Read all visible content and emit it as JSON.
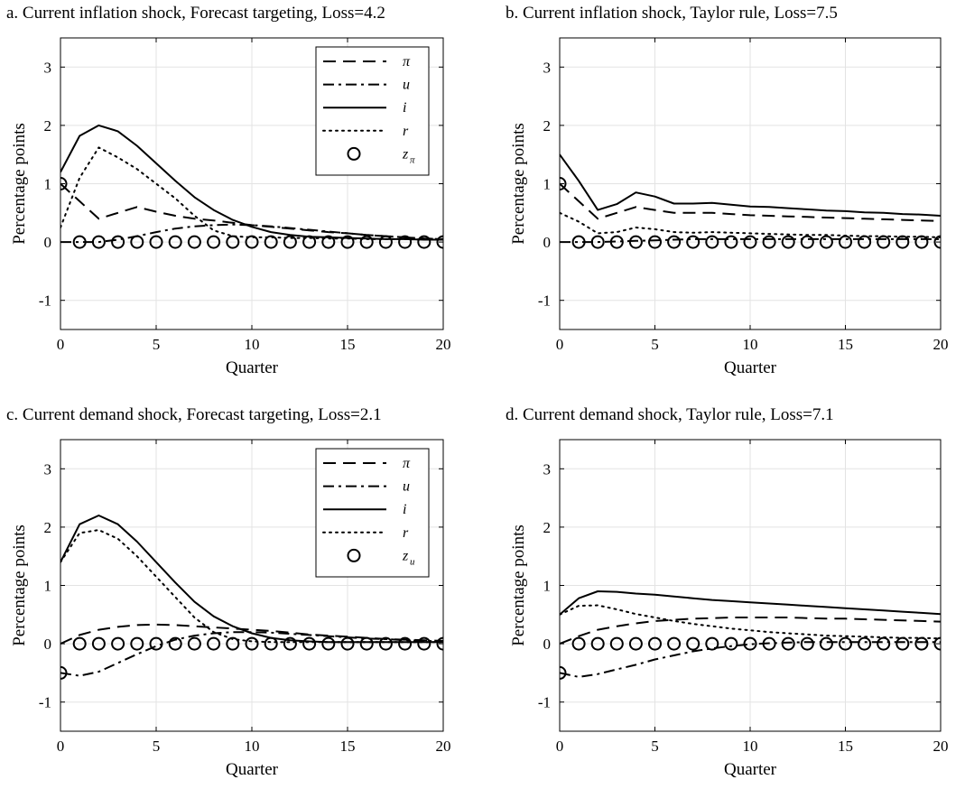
{
  "chart_data": [
    {
      "panel": "a",
      "type": "line",
      "title": "a. Current inflation shock, Forecast targeting, Loss=4.2",
      "xlabel": "Quarter",
      "ylabel": "Percentage points",
      "xlim": [
        0,
        20
      ],
      "ylim": [
        -1.5,
        3.5
      ],
      "xticks": [
        "0",
        "5",
        "10",
        "15",
        "20"
      ],
      "yticks": [
        "-1",
        "0",
        "1",
        "2",
        "3"
      ],
      "grid": true,
      "legend": {
        "visible": true,
        "placement": "top-right",
        "entries": [
          {
            "label": "π",
            "sub": "",
            "style": "dashed"
          },
          {
            "label": "u",
            "sub": "",
            "style": "dashdot"
          },
          {
            "label": "i",
            "sub": "",
            "style": "solid"
          },
          {
            "label": "r",
            "sub": "",
            "style": "dotted"
          },
          {
            "label": "z",
            "sub": "π",
            "style": "circle"
          }
        ]
      },
      "x": [
        0,
        1,
        2,
        3,
        4,
        5,
        6,
        7,
        8,
        9,
        10,
        11,
        12,
        13,
        14,
        15,
        16,
        17,
        18,
        19,
        20
      ],
      "series": [
        {
          "name": "π",
          "style": "dashed",
          "values": [
            1.0,
            0.7,
            0.4,
            0.5,
            0.6,
            0.52,
            0.45,
            0.4,
            0.37,
            0.33,
            0.29,
            0.26,
            0.23,
            0.2,
            0.17,
            0.15,
            0.12,
            0.1,
            0.08,
            0.06,
            0.05
          ]
        },
        {
          "name": "u",
          "style": "dashdot",
          "values": [
            0,
            0,
            0,
            0.04,
            0.1,
            0.17,
            0.23,
            0.27,
            0.29,
            0.3,
            0.29,
            0.27,
            0.24,
            0.21,
            0.18,
            0.15,
            0.12,
            0.1,
            0.08,
            0.06,
            0.05
          ]
        },
        {
          "name": "i",
          "style": "solid",
          "values": [
            1.2,
            1.82,
            2.0,
            1.9,
            1.65,
            1.35,
            1.05,
            0.77,
            0.55,
            0.38,
            0.26,
            0.17,
            0.12,
            0.09,
            0.08,
            0.07,
            0.06,
            0.05,
            0.05,
            0.04,
            0.04
          ]
        },
        {
          "name": "r",
          "style": "dotted",
          "values": [
            0.25,
            1.1,
            1.62,
            1.45,
            1.25,
            1.0,
            0.75,
            0.45,
            0.2,
            0.1,
            0.08,
            0.08,
            0.07,
            0.07,
            0.06,
            0.06,
            0.05,
            0.05,
            0.05,
            0.04,
            0.04
          ]
        },
        {
          "name": "z",
          "style": "circle",
          "values": [
            1,
            0,
            0,
            0,
            0,
            0,
            0,
            0,
            0,
            0,
            0,
            0,
            0,
            0,
            0,
            0,
            0,
            0,
            0,
            0,
            0
          ]
        }
      ]
    },
    {
      "panel": "b",
      "type": "line",
      "title": "b. Current inflation shock, Taylor rule, Loss=7.5",
      "xlabel": "Quarter",
      "ylabel": "Percentage points",
      "xlim": [
        0,
        20
      ],
      "ylim": [
        -1.5,
        3.5
      ],
      "xticks": [
        "0",
        "5",
        "10",
        "15",
        "20"
      ],
      "yticks": [
        "-1",
        "0",
        "1",
        "2",
        "3"
      ],
      "grid": true,
      "legend": {
        "visible": false
      },
      "x": [
        0,
        1,
        2,
        3,
        4,
        5,
        6,
        7,
        8,
        9,
        10,
        11,
        12,
        13,
        14,
        15,
        16,
        17,
        18,
        19,
        20
      ],
      "series": [
        {
          "name": "π",
          "style": "dashed",
          "values": [
            1.0,
            0.7,
            0.4,
            0.5,
            0.6,
            0.55,
            0.5,
            0.5,
            0.5,
            0.48,
            0.46,
            0.45,
            0.44,
            0.43,
            0.42,
            0.41,
            0.4,
            0.39,
            0.38,
            0.37,
            0.36
          ]
        },
        {
          "name": "u",
          "style": "dashdot",
          "values": [
            0,
            0,
            0,
            0.01,
            0.02,
            0.03,
            0.04,
            0.05,
            0.05,
            0.05,
            0.05,
            0.05,
            0.05,
            0.05,
            0.05,
            0.05,
            0.05,
            0.05,
            0.05,
            0.05,
            0.05
          ]
        },
        {
          "name": "i",
          "style": "solid",
          "values": [
            1.5,
            1.05,
            0.55,
            0.65,
            0.85,
            0.78,
            0.66,
            0.66,
            0.67,
            0.64,
            0.61,
            0.6,
            0.58,
            0.56,
            0.54,
            0.53,
            0.51,
            0.5,
            0.48,
            0.47,
            0.45
          ]
        },
        {
          "name": "r",
          "style": "dotted",
          "values": [
            0.5,
            0.35,
            0.15,
            0.17,
            0.25,
            0.22,
            0.17,
            0.16,
            0.17,
            0.16,
            0.15,
            0.14,
            0.13,
            0.12,
            0.12,
            0.11,
            0.1,
            0.1,
            0.09,
            0.09,
            0.08
          ]
        },
        {
          "name": "z",
          "style": "circle",
          "values": [
            1,
            0,
            0,
            0,
            0,
            0,
            0,
            0,
            0,
            0,
            0,
            0,
            0,
            0,
            0,
            0,
            0,
            0,
            0,
            0,
            0
          ]
        }
      ]
    },
    {
      "panel": "c",
      "type": "line",
      "title": "c. Current demand shock, Forecast targeting, Loss=2.1",
      "xlabel": "Quarter",
      "ylabel": "Percentage points",
      "xlim": [
        0,
        20
      ],
      "ylim": [
        -1.5,
        3.5
      ],
      "xticks": [
        "0",
        "5",
        "10",
        "15",
        "20"
      ],
      "yticks": [
        "-1",
        "0",
        "1",
        "2",
        "3"
      ],
      "grid": true,
      "legend": {
        "visible": true,
        "placement": "top-right",
        "entries": [
          {
            "label": "π",
            "sub": "",
            "style": "dashed"
          },
          {
            "label": "u",
            "sub": "",
            "style": "dashdot"
          },
          {
            "label": "i",
            "sub": "",
            "style": "solid"
          },
          {
            "label": "r",
            "sub": "",
            "style": "dotted"
          },
          {
            "label": "z",
            "sub": "u",
            "style": "circle"
          }
        ]
      },
      "x": [
        0,
        1,
        2,
        3,
        4,
        5,
        6,
        7,
        8,
        9,
        10,
        11,
        12,
        13,
        14,
        15,
        16,
        17,
        18,
        19,
        20
      ],
      "series": [
        {
          "name": "π",
          "style": "dashed",
          "values": [
            0,
            0.15,
            0.24,
            0.29,
            0.32,
            0.33,
            0.32,
            0.3,
            0.28,
            0.26,
            0.24,
            0.22,
            0.19,
            0.16,
            0.14,
            0.12,
            0.1,
            0.08,
            0.07,
            0.06,
            0.05
          ]
        },
        {
          "name": "u",
          "style": "dashdot",
          "values": [
            -0.5,
            -0.55,
            -0.48,
            -0.33,
            -0.18,
            -0.04,
            0.07,
            0.14,
            0.18,
            0.2,
            0.2,
            0.19,
            0.17,
            0.15,
            0.13,
            0.11,
            0.09,
            0.08,
            0.06,
            0.05,
            0.04
          ]
        },
        {
          "name": "i",
          "style": "solid",
          "values": [
            1.4,
            2.05,
            2.2,
            2.05,
            1.75,
            1.4,
            1.05,
            0.72,
            0.47,
            0.3,
            0.18,
            0.1,
            0.06,
            0.04,
            0.03,
            0.03,
            0.03,
            0.03,
            0.03,
            0.03,
            0.03
          ]
        },
        {
          "name": "r",
          "style": "dotted",
          "values": [
            1.4,
            1.9,
            1.95,
            1.8,
            1.5,
            1.15,
            0.8,
            0.45,
            0.2,
            0.08,
            0.04,
            0.03,
            0.03,
            0.03,
            0.03,
            0.03,
            0.03,
            0.03,
            0.03,
            0.03,
            0.03
          ]
        },
        {
          "name": "z",
          "style": "circle",
          "values": [
            -0.5,
            0,
            0,
            0,
            0,
            0,
            0,
            0,
            0,
            0,
            0,
            0,
            0,
            0,
            0,
            0,
            0,
            0,
            0,
            0,
            0
          ]
        }
      ]
    },
    {
      "panel": "d",
      "type": "line",
      "title": "d. Current demand shock, Taylor rule, Loss=7.1",
      "xlabel": "Quarter",
      "ylabel": "Percentage points",
      "xlim": [
        0,
        20
      ],
      "ylim": [
        -1.5,
        3.5
      ],
      "xticks": [
        "0",
        "5",
        "10",
        "15",
        "20"
      ],
      "yticks": [
        "-1",
        "0",
        "1",
        "2",
        "3"
      ],
      "grid": true,
      "legend": {
        "visible": false
      },
      "x": [
        0,
        1,
        2,
        3,
        4,
        5,
        6,
        7,
        8,
        9,
        10,
        11,
        12,
        13,
        14,
        15,
        16,
        17,
        18,
        19,
        20
      ],
      "series": [
        {
          "name": "π",
          "style": "dashed",
          "values": [
            0,
            0.13,
            0.24,
            0.3,
            0.35,
            0.39,
            0.41,
            0.43,
            0.44,
            0.45,
            0.45,
            0.45,
            0.45,
            0.44,
            0.43,
            0.43,
            0.42,
            0.41,
            0.4,
            0.39,
            0.38
          ]
        },
        {
          "name": "u",
          "style": "dashdot",
          "values": [
            -0.5,
            -0.57,
            -0.52,
            -0.44,
            -0.36,
            -0.27,
            -0.2,
            -0.13,
            -0.08,
            -0.04,
            -0.01,
            0.01,
            0.02,
            0.03,
            0.03,
            0.03,
            0.03,
            0.03,
            0.03,
            0.03,
            0.03
          ]
        },
        {
          "name": "i",
          "style": "solid",
          "values": [
            0.5,
            0.78,
            0.9,
            0.89,
            0.86,
            0.84,
            0.81,
            0.78,
            0.75,
            0.73,
            0.71,
            0.69,
            0.67,
            0.65,
            0.63,
            0.61,
            0.59,
            0.57,
            0.55,
            0.53,
            0.51
          ]
        },
        {
          "name": "r",
          "style": "dotted",
          "values": [
            0.5,
            0.65,
            0.66,
            0.59,
            0.51,
            0.45,
            0.39,
            0.34,
            0.3,
            0.26,
            0.23,
            0.2,
            0.18,
            0.16,
            0.14,
            0.13,
            0.12,
            0.11,
            0.1,
            0.1,
            0.09
          ]
        },
        {
          "name": "z",
          "style": "circle",
          "values": [
            -0.5,
            0,
            0,
            0,
            0,
            0,
            0,
            0,
            0,
            0,
            0,
            0,
            0,
            0,
            0,
            0,
            0,
            0,
            0,
            0,
            0
          ]
        }
      ]
    }
  ]
}
